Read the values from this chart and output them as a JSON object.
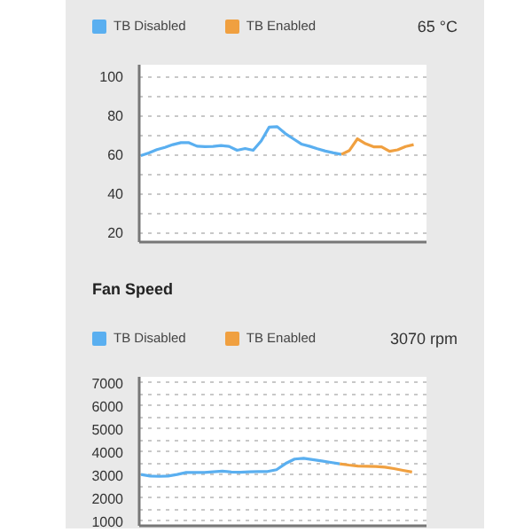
{
  "chart_data": [
    {
      "type": "line",
      "annotations": [
        "65 °C"
      ],
      "categories": [
        null,
        null,
        null,
        null,
        null,
        null,
        null,
        null,
        null,
        null,
        null,
        null,
        null,
        null,
        null,
        null,
        null,
        null,
        null,
        null,
        null,
        null,
        null,
        null,
        null,
        null,
        null,
        null,
        null,
        null,
        null,
        null,
        null,
        null,
        null
      ],
      "series": [
        {
          "name": "TB Disabled",
          "color": "#5aaff0",
          "values": [
            59.4,
            60.7,
            62.4,
            63.6,
            65,
            66,
            66,
            64.2,
            64,
            64.1,
            64.5,
            64.1,
            62.1,
            63,
            62.1,
            66.9,
            74,
            74.2,
            70.7,
            68,
            65.3,
            64.2,
            62.9,
            61.7,
            60.8,
            60,
            null,
            null,
            null,
            null,
            null,
            null,
            null,
            null,
            null
          ]
        },
        {
          "name": "TB Enabled",
          "color": "#f0a040",
          "values": [
            null,
            null,
            null,
            null,
            null,
            null,
            null,
            null,
            null,
            null,
            null,
            null,
            null,
            null,
            null,
            null,
            null,
            null,
            null,
            null,
            null,
            null,
            null,
            null,
            null,
            60,
            62,
            68,
            65.5,
            63.9,
            63.9,
            61.6,
            62.3,
            64,
            65
          ]
        }
      ],
      "ylim": [
        15,
        106
      ],
      "yticks": [
        20,
        40,
        60,
        80,
        100
      ],
      "tick_labels": "y",
      "grid": "y",
      "legend": "top left",
      "line_style": "solid"
    },
    {
      "type": "line",
      "title": "Fan Speed",
      "annotations": [
        "3070 rpm"
      ],
      "categories": [
        null,
        null,
        null,
        null,
        null,
        null,
        null,
        null,
        null,
        null,
        null,
        null,
        null,
        null,
        null,
        null,
        null,
        null,
        null,
        null,
        null,
        null,
        null,
        null,
        null,
        null,
        null,
        null,
        null,
        null,
        null
      ],
      "series": [
        {
          "name": "TB Disabled",
          "color": "#5aaff0",
          "values": [
            3020,
            2955,
            2940,
            2955,
            3020,
            3110,
            3110,
            3110,
            3140,
            3165,
            3130,
            3120,
            3135,
            3150,
            3150,
            3230,
            3495,
            3690,
            3720,
            3665,
            3610,
            3545,
            3480,
            null,
            null,
            null,
            null,
            null,
            null,
            null,
            null
          ]
        },
        {
          "name": "TB Enabled",
          "color": "#f0a040",
          "values": [
            null,
            null,
            null,
            null,
            null,
            null,
            null,
            null,
            null,
            null,
            null,
            null,
            null,
            null,
            null,
            null,
            null,
            null,
            null,
            null,
            null,
            null,
            3480,
            3430,
            3390,
            3380,
            3370,
            3340,
            3275,
            3200,
            3130
          ]
        }
      ],
      "ylim": [
        800,
        7250
      ],
      "yticks": [
        1000,
        2000,
        3000,
        4000,
        5000,
        6000,
        7000
      ],
      "tick_labels": "y",
      "grid": "y",
      "legend": "top left",
      "line_style": "solid"
    }
  ]
}
